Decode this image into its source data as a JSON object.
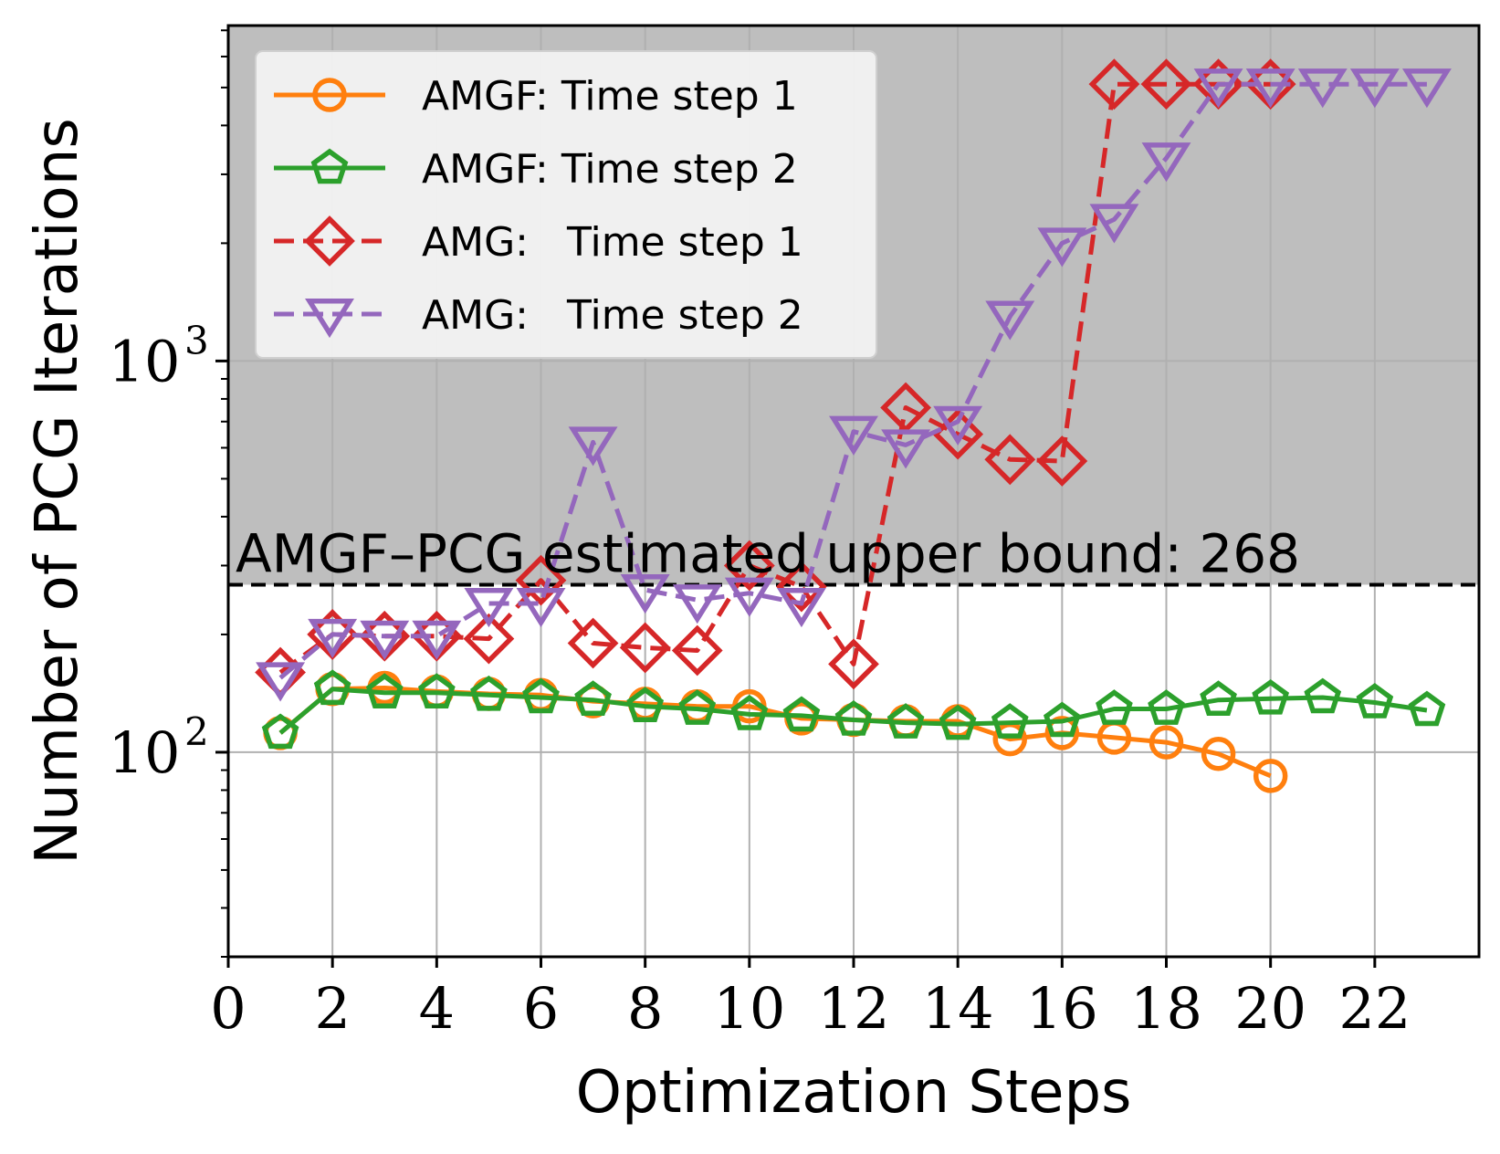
{
  "chart_data": {
    "type": "line",
    "xlabel": "Optimization Steps",
    "ylabel": "Number of PCG Iterations",
    "yscale": "log",
    "xlim": [
      0,
      24
    ],
    "ylim": [
      30,
      7200
    ],
    "xticks": [
      0,
      2,
      4,
      6,
      8,
      10,
      12,
      14,
      16,
      18,
      20,
      22
    ],
    "yticks": [
      {
        "value": 100,
        "label": "10",
        "exp": "2"
      },
      {
        "value": 1000,
        "label": "10",
        "exp": "3"
      }
    ],
    "grid": true,
    "legend_position": "top-left",
    "threshold": {
      "value": 268,
      "label": "AMGF–PCG estimated upper bound: 268",
      "shade_above_color": "#bebebe"
    },
    "series": [
      {
        "name": "AMGF: Time step 1",
        "color": "#ff7f0e",
        "linestyle": "solid",
        "marker": "circle",
        "x": [
          1,
          2,
          3,
          4,
          5,
          6,
          7,
          8,
          9,
          10,
          11,
          12,
          13,
          14,
          15,
          16,
          17,
          18,
          19,
          20
        ],
        "y": [
          112,
          145,
          146,
          143,
          141,
          140,
          135,
          133,
          131,
          131,
          122,
          121,
          120,
          120,
          108,
          112,
          109,
          106,
          99,
          87
        ]
      },
      {
        "name": "AMGF: Time step 2",
        "color": "#2ca02c",
        "linestyle": "solid",
        "marker": "pentagon",
        "x": [
          1,
          2,
          3,
          4,
          5,
          6,
          7,
          8,
          9,
          10,
          11,
          12,
          13,
          14,
          15,
          16,
          17,
          18,
          19,
          20,
          21,
          22,
          23
        ],
        "y": [
          112,
          145,
          142,
          142,
          140,
          138,
          136,
          131,
          129,
          125,
          124,
          121,
          119,
          118,
          119,
          120,
          129,
          129,
          136,
          137,
          138,
          134,
          128
        ]
      },
      {
        "name": "AMG:   Time step 1",
        "color": "#d62728",
        "linestyle": "dashed",
        "marker": "diamond",
        "x": [
          1,
          2,
          3,
          4,
          5,
          6,
          7,
          8,
          9,
          10,
          11,
          12,
          13,
          14,
          15,
          16,
          17,
          18,
          19,
          20
        ],
        "y": [
          160,
          200,
          198,
          198,
          195,
          275,
          190,
          185,
          182,
          300,
          265,
          168,
          760,
          650,
          560,
          555,
          5100,
          5100,
          5100,
          5100
        ]
      },
      {
        "name": "AMG:   Time step 2",
        "color": "#9467bd",
        "linestyle": "dashed",
        "marker": "triangle-down",
        "x": [
          1,
          2,
          3,
          4,
          5,
          6,
          7,
          8,
          9,
          10,
          11,
          12,
          13,
          14,
          15,
          16,
          17,
          18,
          19,
          20,
          21,
          22,
          23
        ],
        "y": [
          155,
          200,
          198,
          198,
          240,
          240,
          620,
          260,
          245,
          255,
          240,
          660,
          610,
          700,
          1300,
          2000,
          2300,
          3300,
          5100,
          5100,
          5100,
          5100,
          5100
        ]
      }
    ]
  }
}
